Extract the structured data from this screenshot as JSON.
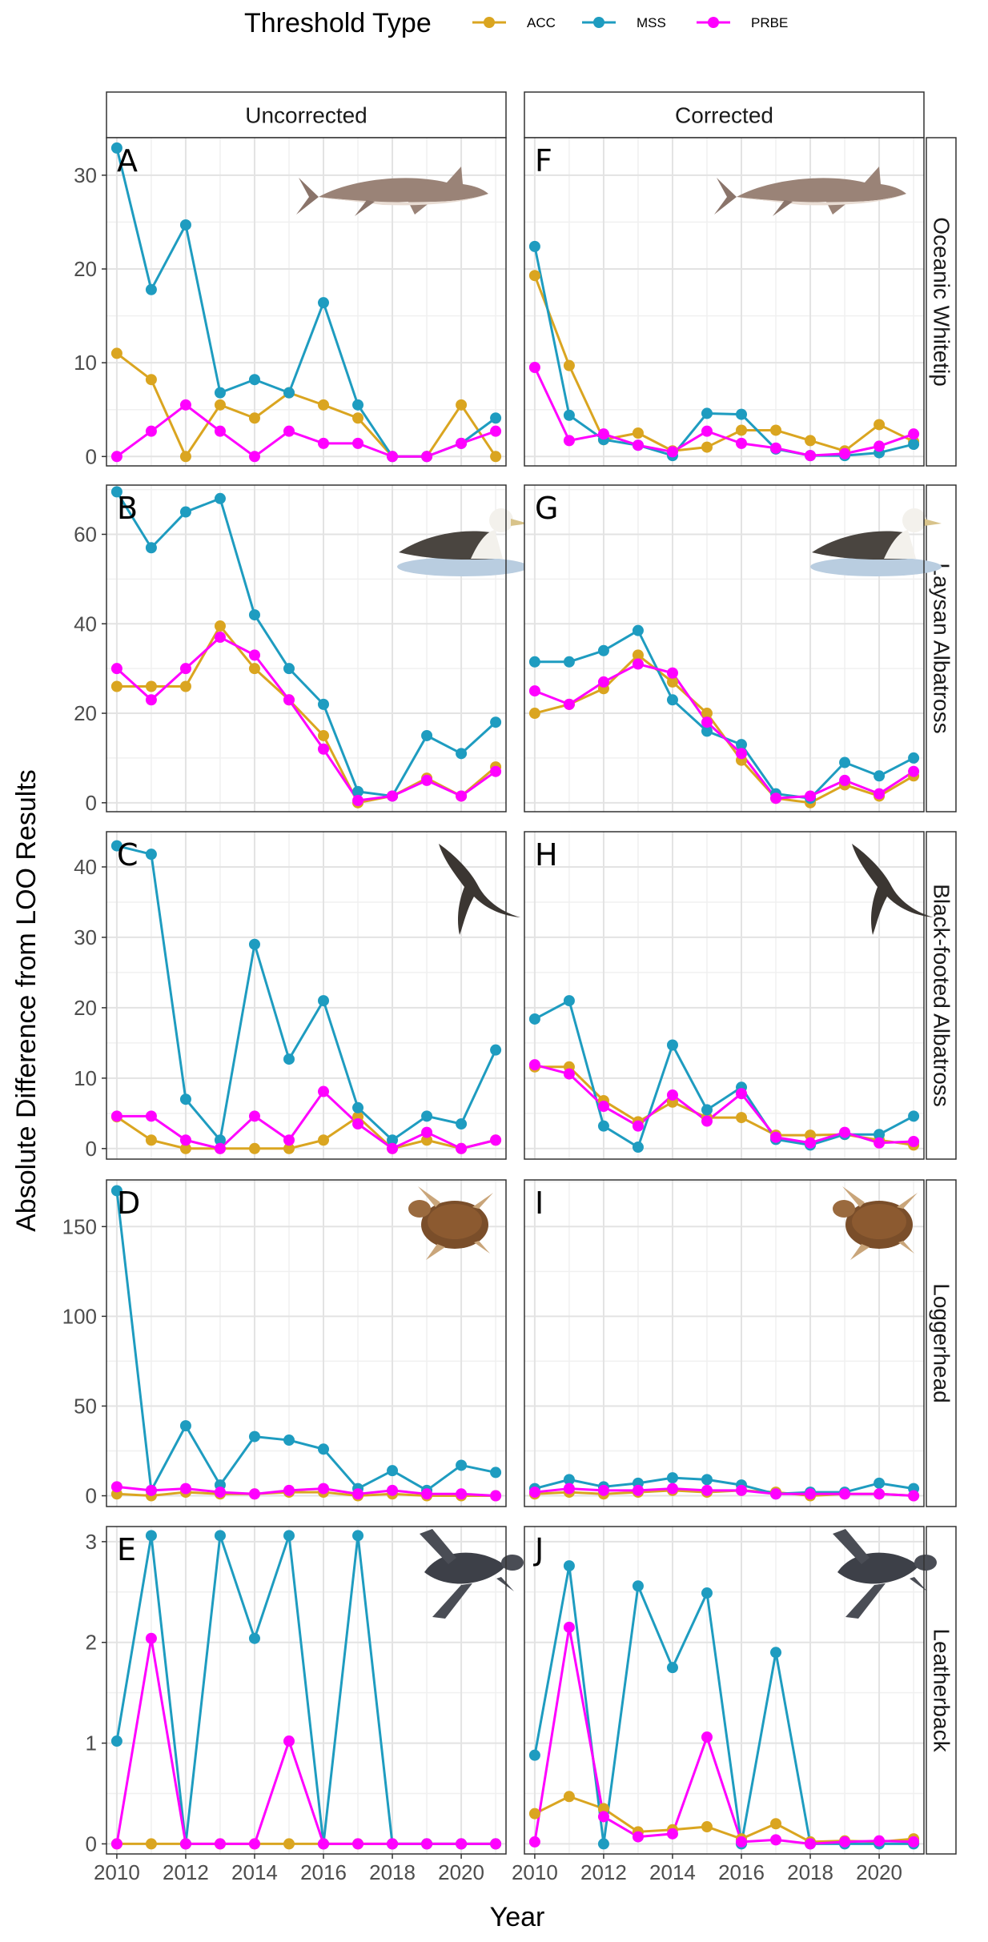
{
  "colors": {
    "ACC": "#DAA520",
    "MSS": "#1E9CC0",
    "PRBE": "#FF00FF"
  },
  "legend": {
    "title": "Threshold Type",
    "entries": [
      "ACC",
      "MSS",
      "PRBE"
    ]
  },
  "columns": [
    "Uncorrected",
    "Corrected"
  ],
  "xlabel": "Year",
  "ylabel": "Absolute Difference from LOO Results",
  "species": [
    {
      "name": "Oceanic Whitetip",
      "icon": "shark-icon",
      "letters": [
        "A",
        "F"
      ],
      "yticks": [
        0,
        10,
        20,
        30
      ],
      "ylim": [
        -1,
        34
      ]
    },
    {
      "name": "Laysan Albatross",
      "icon": "albatross-icon",
      "letters": [
        "B",
        "G"
      ],
      "yticks": [
        0,
        20,
        40,
        60
      ],
      "ylim": [
        -2,
        71
      ]
    },
    {
      "name": "Black-footed Albatross",
      "icon": "flying-albatross-icon",
      "letters": [
        "C",
        "H"
      ],
      "yticks": [
        0,
        10,
        20,
        30,
        40
      ],
      "ylim": [
        -1.5,
        45
      ]
    },
    {
      "name": "Loggerhead",
      "icon": "loggerhead-turtle-icon",
      "letters": [
        "D",
        "I"
      ],
      "yticks": [
        0,
        50,
        100,
        150
      ],
      "ylim": [
        -6,
        176
      ]
    },
    {
      "name": "Leatherback",
      "icon": "leatherback-turtle-icon",
      "letters": [
        "E",
        "J"
      ],
      "yticks": [
        0,
        1,
        2,
        3
      ],
      "ylim": [
        -0.1,
        3.15
      ]
    }
  ],
  "chart_data": {
    "type": "line",
    "x": [
      2010,
      2011,
      2012,
      2013,
      2014,
      2015,
      2016,
      2017,
      2018,
      2019,
      2020,
      2021
    ],
    "xticks": [
      2010,
      2012,
      2014,
      2016,
      2018,
      2020
    ],
    "xlim": [
      2009.7,
      2021.3
    ],
    "panels": [
      {
        "id": "A",
        "species": "Oceanic Whitetip",
        "correction": "Uncorrected",
        "series": [
          {
            "name": "ACC",
            "values": [
              11.0,
              8.2,
              0,
              5.5,
              4.1,
              6.8,
              5.5,
              4.1,
              0,
              0,
              5.5,
              0
            ]
          },
          {
            "name": "MSS",
            "values": [
              32.9,
              17.8,
              24.7,
              6.8,
              8.2,
              6.8,
              16.4,
              5.5,
              0,
              0,
              1.4,
              4.1
            ]
          },
          {
            "name": "PRBE",
            "values": [
              0,
              2.7,
              5.5,
              2.7,
              0,
              2.7,
              1.4,
              1.4,
              0,
              0,
              1.4,
              2.7
            ]
          }
        ]
      },
      {
        "id": "F",
        "species": "Oceanic Whitetip",
        "correction": "Corrected",
        "series": [
          {
            "name": "ACC",
            "values": [
              19.3,
              9.7,
              1.8,
              2.5,
              0.6,
              1.0,
              2.8,
              2.8,
              1.7,
              0.6,
              3.4,
              1.6
            ]
          },
          {
            "name": "MSS",
            "values": [
              22.4,
              4.4,
              1.8,
              1.2,
              0.1,
              4.6,
              4.5,
              0.8,
              0.1,
              0.1,
              0.4,
              1.3
            ]
          },
          {
            "name": "PRBE",
            "values": [
              9.5,
              1.7,
              2.4,
              1.2,
              0.5,
              2.7,
              1.4,
              0.9,
              0.1,
              0.3,
              1.1,
              2.4
            ]
          }
        ]
      },
      {
        "id": "B",
        "species": "Laysan Albatross",
        "correction": "Uncorrected",
        "series": [
          {
            "name": "ACC",
            "values": [
              26,
              26,
              26,
              39.5,
              30,
              23,
              15,
              0,
              1.5,
              5.5,
              1.5,
              8
            ]
          },
          {
            "name": "MSS",
            "values": [
              69.5,
              57,
              65,
              68,
              42,
              30,
              22,
              2.5,
              1.5,
              15,
              11,
              18
            ]
          },
          {
            "name": "PRBE",
            "values": [
              30,
              23,
              30,
              37,
              33,
              23,
              12,
              0.5,
              1.5,
              5,
              1.5,
              7
            ]
          }
        ]
      },
      {
        "id": "G",
        "species": "Laysan Albatross",
        "correction": "Corrected",
        "series": [
          {
            "name": "ACC",
            "values": [
              20,
              22,
              25.5,
              33,
              27,
              20,
              9.5,
              1,
              0,
              4,
              1.5,
              6
            ]
          },
          {
            "name": "MSS",
            "values": [
              31.5,
              31.5,
              34,
              38.5,
              23,
              16,
              13,
              2,
              1,
              9,
              6,
              10
            ]
          },
          {
            "name": "PRBE",
            "values": [
              25,
              22,
              27,
              31,
              29,
              18,
              11,
              1,
              1.5,
              5,
              2,
              7
            ]
          }
        ]
      },
      {
        "id": "C",
        "species": "Black-footed Albatross",
        "correction": "Uncorrected",
        "series": [
          {
            "name": "ACC",
            "values": [
              4.5,
              1.2,
              0,
              0,
              0,
              0,
              1.2,
              4.5,
              0,
              1.2,
              0,
              1.2
            ]
          },
          {
            "name": "MSS",
            "values": [
              43,
              41.8,
              7,
              1.2,
              29,
              12.7,
              21,
              5.8,
              1.2,
              4.6,
              3.5,
              14
            ]
          },
          {
            "name": "PRBE",
            "values": [
              4.6,
              4.6,
              1.2,
              0,
              4.6,
              1.2,
              8.1,
              3.5,
              0,
              2.3,
              0,
              1.2
            ]
          }
        ]
      },
      {
        "id": "H",
        "species": "Black-footed Albatross",
        "correction": "Corrected",
        "series": [
          {
            "name": "ACC",
            "values": [
              11.6,
              11.6,
              6.8,
              3.8,
              6.6,
              4.4,
              4.4,
              1.9,
              1.9,
              2.0,
              1.2,
              0.5
            ]
          },
          {
            "name": "MSS",
            "values": [
              18.4,
              21,
              3.2,
              0.2,
              14.7,
              5.5,
              8.7,
              1.3,
              0.5,
              2.0,
              2.0,
              4.6
            ]
          },
          {
            "name": "PRBE",
            "values": [
              11.9,
              10.6,
              6.0,
              3.2,
              7.6,
              3.9,
              7.8,
              1.6,
              0.8,
              2.3,
              0.8,
              1.0
            ]
          }
        ]
      },
      {
        "id": "D",
        "species": "Loggerhead",
        "correction": "Uncorrected",
        "series": [
          {
            "name": "ACC",
            "values": [
              1,
              0,
              2,
              1,
              1,
              2,
              2,
              0,
              1,
              0,
              0,
              0
            ]
          },
          {
            "name": "MSS",
            "values": [
              170,
              3,
              39,
              6,
              33,
              31,
              26,
              4,
              14,
              3,
              17,
              13
            ]
          },
          {
            "name": "PRBE",
            "values": [
              5,
              3,
              4,
              2,
              1,
              3,
              4,
              1,
              3,
              1,
              1,
              0
            ]
          }
        ]
      },
      {
        "id": "I",
        "species": "Loggerhead",
        "correction": "Corrected",
        "series": [
          {
            "name": "ACC",
            "values": [
              1,
              2,
              1,
              2,
              3,
              2,
              3,
              2,
              0,
              1,
              1,
              0
            ]
          },
          {
            "name": "MSS",
            "values": [
              4,
              9,
              5,
              7,
              10,
              9,
              6,
              1,
              2,
              2,
              7,
              4
            ]
          },
          {
            "name": "PRBE",
            "values": [
              2,
              4,
              3,
              3,
              4,
              3,
              3,
              1,
              1,
              1,
              1,
              0
            ]
          }
        ]
      },
      {
        "id": "E",
        "species": "Leatherback",
        "correction": "Uncorrected",
        "series": [
          {
            "name": "ACC",
            "values": [
              0,
              0,
              0,
              0,
              0,
              0,
              0,
              0,
              0,
              0,
              0,
              0
            ]
          },
          {
            "name": "MSS",
            "values": [
              1.02,
              3.06,
              0,
              3.06,
              2.04,
              3.06,
              0,
              3.06,
              0,
              0,
              0,
              0
            ]
          },
          {
            "name": "PRBE",
            "values": [
              0,
              2.04,
              0,
              0,
              0,
              1.02,
              0,
              0,
              0,
              0,
              0,
              0
            ]
          }
        ]
      },
      {
        "id": "J",
        "species": "Leatherback",
        "correction": "Corrected",
        "series": [
          {
            "name": "ACC",
            "values": [
              0.3,
              0.47,
              0.35,
              0.12,
              0.14,
              0.17,
              0.05,
              0.2,
              0.02,
              0.03,
              0.02,
              0.05
            ]
          },
          {
            "name": "MSS",
            "values": [
              0.88,
              2.76,
              0,
              2.56,
              1.75,
              2.49,
              0,
              1.9,
              0,
              0,
              0,
              0
            ]
          },
          {
            "name": "PRBE",
            "values": [
              0.02,
              2.15,
              0.27,
              0.07,
              0.1,
              1.06,
              0.02,
              0.04,
              0,
              0.02,
              0.03,
              0.02
            ]
          }
        ]
      }
    ]
  }
}
